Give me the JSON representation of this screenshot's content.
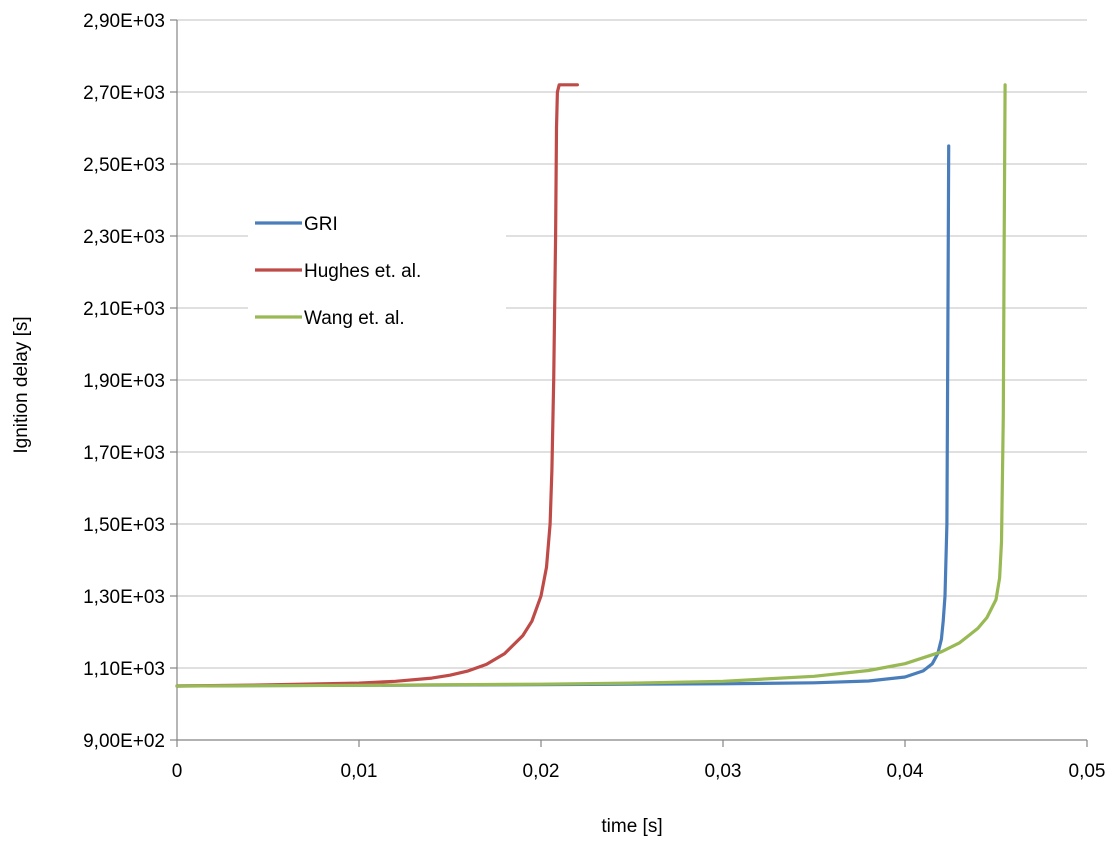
{
  "chart_data": {
    "type": "line",
    "title": "",
    "xlabel": "time [s]",
    "ylabel": "Ignition delay [s]",
    "xlim": [
      0,
      0.05
    ],
    "ylim": [
      900,
      2900
    ],
    "xticks": [
      0,
      0.01,
      0.02,
      0.03,
      0.04,
      0.05
    ],
    "xtick_labels": [
      "0",
      "0,01",
      "0,02",
      "0,03",
      "0,04",
      "0,05"
    ],
    "yticks": [
      900,
      1100,
      1300,
      1500,
      1700,
      1900,
      2100,
      2300,
      2500,
      2700,
      2900
    ],
    "ytick_labels": [
      "9,00E+02",
      "1,10E+03",
      "1,30E+03",
      "1,50E+03",
      "1,70E+03",
      "1,90E+03",
      "2,10E+03",
      "2,30E+03",
      "2,50E+03",
      "2,70E+03",
      "2,90E+03"
    ],
    "grid": "horizontal",
    "legend_position": "upper-left",
    "series": [
      {
        "name": "GRI",
        "color": "#4a7ebb",
        "x": [
          0,
          0.01,
          0.02,
          0.03,
          0.035,
          0.038,
          0.04,
          0.041,
          0.0415,
          0.0418,
          0.042,
          0.0421,
          0.0422,
          0.0423,
          0.04235,
          0.0424
        ],
        "y": [
          1050,
          1052,
          1054,
          1056,
          1059,
          1064,
          1075,
          1092,
          1112,
          1140,
          1180,
          1230,
          1300,
          1500,
          2000,
          2550
        ]
      },
      {
        "name": "Hughes et. al.",
        "color": "#be4b48",
        "x": [
          0,
          0.005,
          0.01,
          0.012,
          0.014,
          0.015,
          0.016,
          0.017,
          0.018,
          0.019,
          0.0195,
          0.02,
          0.0203,
          0.0205,
          0.0206,
          0.0207,
          0.0208,
          0.02085,
          0.0209,
          0.021,
          0.022
        ],
        "y": [
          1050,
          1053,
          1058,
          1063,
          1072,
          1080,
          1092,
          1110,
          1140,
          1190,
          1230,
          1300,
          1380,
          1500,
          1650,
          1900,
          2300,
          2600,
          2700,
          2720,
          2720
        ]
      },
      {
        "name": "Wang et. al.",
        "color": "#98b954",
        "x": [
          0,
          0.01,
          0.02,
          0.025,
          0.03,
          0.035,
          0.038,
          0.04,
          0.042,
          0.043,
          0.044,
          0.0445,
          0.045,
          0.0452,
          0.0453,
          0.0454,
          0.04545,
          0.0455
        ],
        "y": [
          1050,
          1052,
          1055,
          1058,
          1063,
          1077,
          1093,
          1112,
          1145,
          1170,
          1210,
          1240,
          1290,
          1350,
          1450,
          1800,
          2300,
          2720
        ]
      }
    ]
  }
}
